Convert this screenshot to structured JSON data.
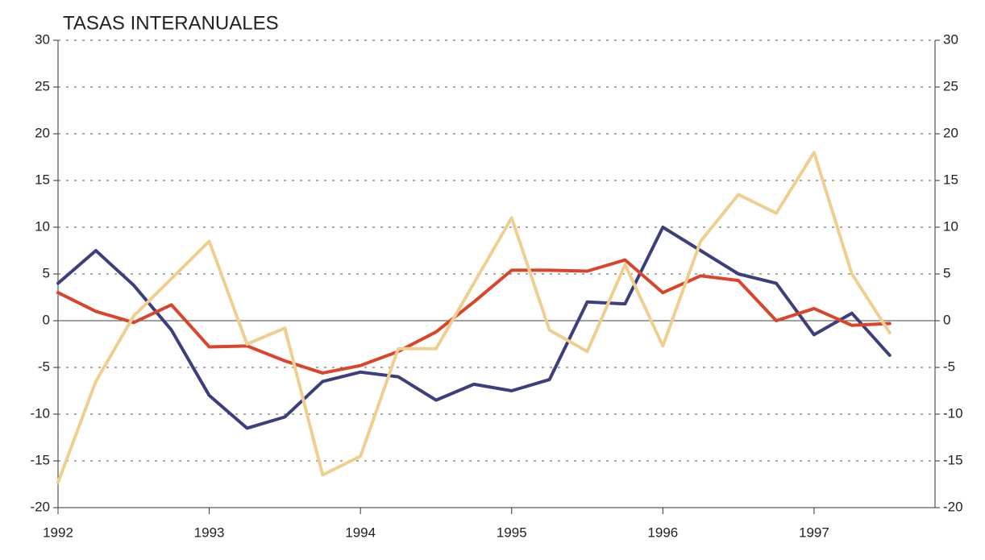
{
  "chart_data": {
    "type": "line",
    "title": "TASAS INTERANUALES",
    "x": [
      1992,
      1992.25,
      1992.5,
      1992.75,
      1993,
      1993.25,
      1993.5,
      1993.75,
      1994,
      1994.25,
      1994.5,
      1994.75,
      1995,
      1995.25,
      1995.5,
      1995.75,
      1996,
      1996.25,
      1996.5,
      1996.75,
      1997,
      1997.25,
      1997.5
    ],
    "xlim": [
      1992,
      1997.8
    ],
    "xticks": [
      1992,
      1993,
      1994,
      1995,
      1996,
      1997
    ],
    "ylim": [
      -20,
      30
    ],
    "yticks": [
      -20,
      -15,
      -10,
      -5,
      0,
      5,
      10,
      15,
      20,
      25,
      30
    ],
    "y2lim": [
      -20,
      30
    ],
    "y2ticks": [
      -20,
      -15,
      -10,
      -5,
      0,
      5,
      10,
      15,
      20,
      25,
      30
    ],
    "grid": true,
    "series": [
      {
        "color": "#3b3f7e",
        "values": [
          4,
          7.5,
          3.8,
          -1,
          -8,
          -11.5,
          -10.3,
          -6.5,
          -5.5,
          -6,
          -8.5,
          -6.8,
          -7.5,
          -6.3,
          2,
          1.8,
          10,
          7.5,
          5,
          4,
          -1.5,
          0.8,
          -3.7
        ]
      },
      {
        "color": "#d9442b",
        "values": [
          3,
          1,
          -0.2,
          1.7,
          -2.8,
          -2.7,
          -4.3,
          -5.6,
          -4.8,
          -3.3,
          -1.2,
          2,
          5.4,
          5.4,
          5.3,
          6.5,
          3,
          4.8,
          4.3,
          0,
          1.3,
          -0.5,
          -0.3
        ]
      },
      {
        "color": "#efcf8f",
        "values": [
          -17.3,
          -6.5,
          0.5,
          4.5,
          8.5,
          -2.5,
          -0.8,
          -16.5,
          -14.5,
          -3,
          -3,
          4,
          11,
          -1,
          -3.3,
          6,
          -2.7,
          8.5,
          13.5,
          11.5,
          18,
          5,
          -1.3
        ]
      }
    ]
  }
}
